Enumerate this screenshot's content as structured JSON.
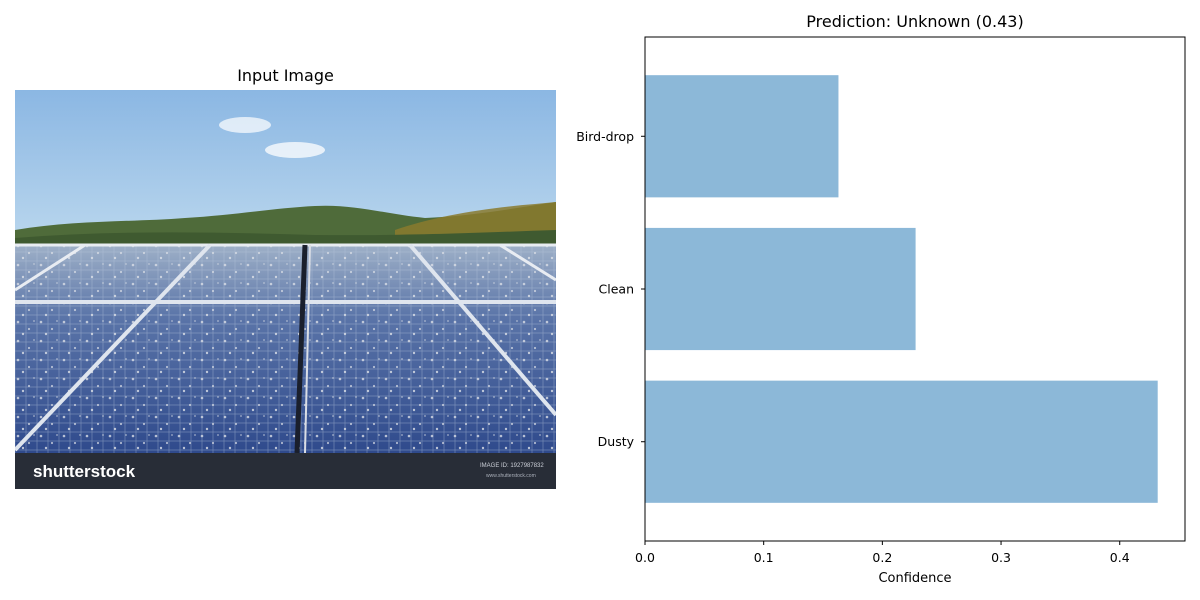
{
  "left_panel": {
    "title": "Input Image",
    "image_description_icon": "photo-solar-panels",
    "watermark": {
      "brand": "shutterstock",
      "id_label": "IMAGE ID:",
      "id_value": "1927987832",
      "site": "www.shutterstock.com"
    }
  },
  "chart_data": {
    "type": "bar",
    "orientation": "horizontal",
    "title": "Prediction: Unknown (0.43)",
    "categories": [
      "Dusty",
      "Clean",
      "Bird-drop"
    ],
    "values": [
      0.432,
      0.228,
      0.163
    ],
    "xlabel": "Confidence",
    "ylabel": "",
    "xlim": [
      0,
      0.455
    ],
    "xticks": [
      0,
      0.1,
      0.2,
      0.3,
      0.4
    ],
    "xtick_labels": [
      "0.0",
      "0.1",
      "0.2",
      "0.3",
      "0.4"
    ],
    "bar_color": "#8cb8d8",
    "grid": false
  }
}
